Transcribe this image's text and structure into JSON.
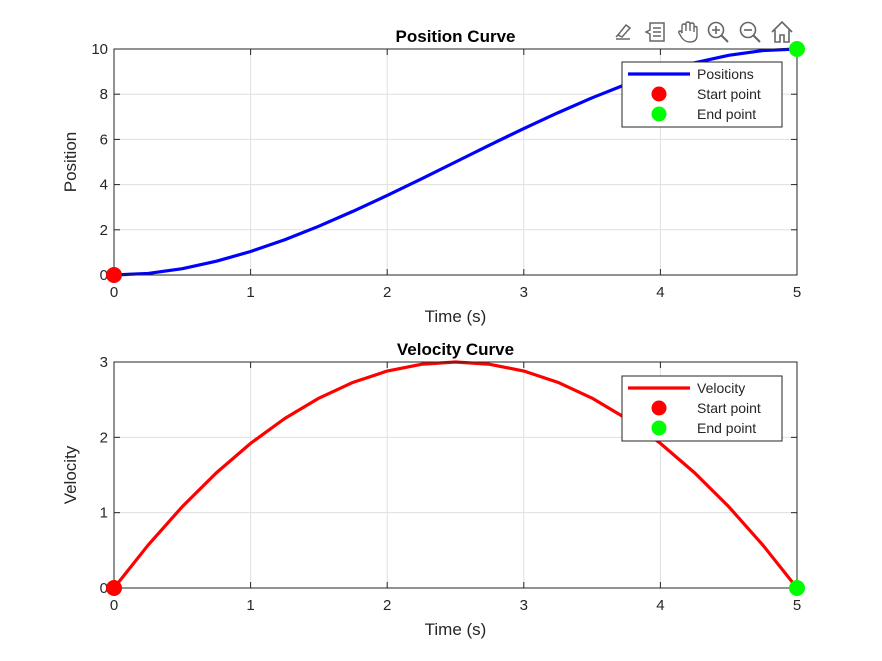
{
  "toolbar": {
    "items": [
      {
        "name": "brush-icon"
      },
      {
        "name": "data-tips-icon"
      },
      {
        "name": "pan-hand-icon"
      },
      {
        "name": "zoom-in-icon"
      },
      {
        "name": "zoom-out-icon"
      },
      {
        "name": "home-icon"
      }
    ]
  },
  "chart_data": [
    {
      "type": "line",
      "title": "Position Curve",
      "xlabel": "Time (s)",
      "ylabel": "Position",
      "xlim": [
        0,
        5
      ],
      "ylim": [
        0,
        10
      ],
      "xticks": [
        "0",
        "1",
        "2",
        "3",
        "4",
        "5"
      ],
      "yticks": [
        "0",
        "2",
        "4",
        "6",
        "8",
        "10"
      ],
      "grid": true,
      "legend_position": "top-right",
      "series": [
        {
          "name": "Positions",
          "color": "#0000ff",
          "x": [
            0,
            0.25,
            0.5,
            0.75,
            1,
            1.25,
            1.5,
            1.75,
            2,
            2.25,
            2.5,
            2.75,
            3,
            3.25,
            3.5,
            3.75,
            4,
            4.25,
            4.5,
            4.75,
            5
          ],
          "y": [
            0,
            0.07,
            0.28,
            0.61,
            1.04,
            1.56,
            2.16,
            2.82,
            3.52,
            4.25,
            5.0,
            5.75,
            6.48,
            7.18,
            7.84,
            8.44,
            8.96,
            9.39,
            9.72,
            9.93,
            10.0
          ]
        }
      ],
      "markers": [
        {
          "name": "Start point",
          "x": 0,
          "y": 0,
          "color": "#ff0000"
        },
        {
          "name": "End point",
          "x": 5,
          "y": 10,
          "color": "#00ff00"
        }
      ]
    },
    {
      "type": "line",
      "title": "Velocity Curve",
      "xlabel": "Time (s)",
      "ylabel": "Velocity",
      "xlim": [
        0,
        5
      ],
      "ylim": [
        0,
        3
      ],
      "xticks": [
        "0",
        "1",
        "2",
        "3",
        "4",
        "5"
      ],
      "yticks": [
        "0",
        "1",
        "2",
        "3"
      ],
      "grid": true,
      "legend_position": "top-right",
      "series": [
        {
          "name": "Velocity",
          "color": "#ff0000",
          "x": [
            0,
            0.25,
            0.5,
            0.75,
            1,
            1.25,
            1.5,
            1.75,
            2,
            2.25,
            2.5,
            2.75,
            3,
            3.25,
            3.5,
            3.75,
            4,
            4.25,
            4.5,
            4.75,
            5
          ],
          "y": [
            0,
            0.57,
            1.08,
            1.53,
            1.92,
            2.25,
            2.52,
            2.73,
            2.88,
            2.97,
            3.0,
            2.97,
            2.88,
            2.73,
            2.52,
            2.25,
            1.92,
            1.53,
            1.08,
            0.57,
            0
          ]
        }
      ],
      "markers": [
        {
          "name": "Start point",
          "x": 0,
          "y": 0,
          "color": "#ff0000"
        },
        {
          "name": "End point",
          "x": 5,
          "y": 0,
          "color": "#00ff00"
        }
      ]
    }
  ]
}
